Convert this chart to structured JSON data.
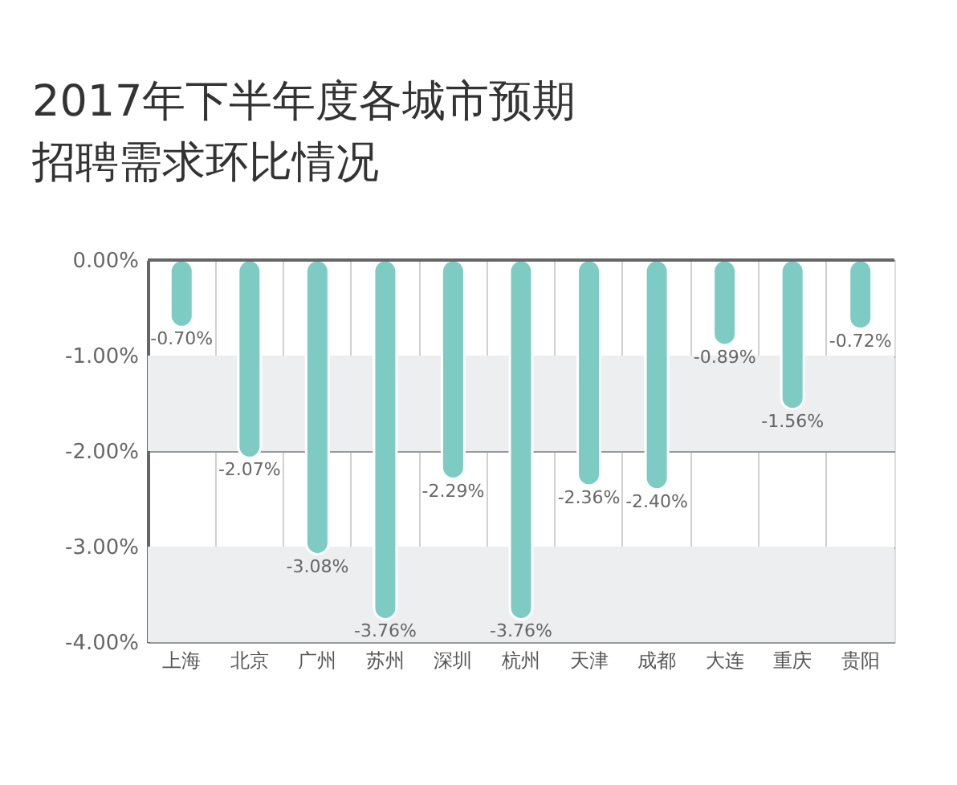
{
  "chart_data": {
    "type": "bar",
    "title": "2017年下半年度各城市预期招聘需求环比情况",
    "categories": [
      "上海",
      "北京",
      "广州",
      "苏州",
      "深圳",
      "杭州",
      "天津",
      "成都",
      "大连",
      "重庆",
      "贵阳"
    ],
    "values": [
      -0.7,
      -2.07,
      -3.08,
      -3.76,
      -2.29,
      -3.76,
      -2.36,
      -2.4,
      -0.89,
      -1.56,
      -0.72
    ],
    "color": "#7ecbc4",
    "ylim": [
      -4,
      0
    ],
    "yticks": [
      {
        "value": 0,
        "label": "0.00%"
      },
      {
        "value": -1,
        "label": "-1.00%"
      },
      {
        "value": -2,
        "label": "-2.00%"
      },
      {
        "value": -3,
        "label": "-3.00%"
      },
      {
        "value": -4,
        "label": "-4.00%"
      }
    ],
    "value_labels": [
      "-0.70%",
      "-2.07%",
      "-3.08%",
      "-3.76%",
      "-2.29%",
      "-3.76%",
      "-2.36%",
      "-2.40%",
      "-0.89%",
      "-1.56%",
      "-0.72%"
    ],
    "bands": [
      {
        "axis": "y",
        "from": -1,
        "to": -2,
        "color": "#eceef0"
      },
      {
        "axis": "y",
        "from": -3,
        "to": -4,
        "color": "#eceef0"
      }
    ],
    "grid": true
  }
}
